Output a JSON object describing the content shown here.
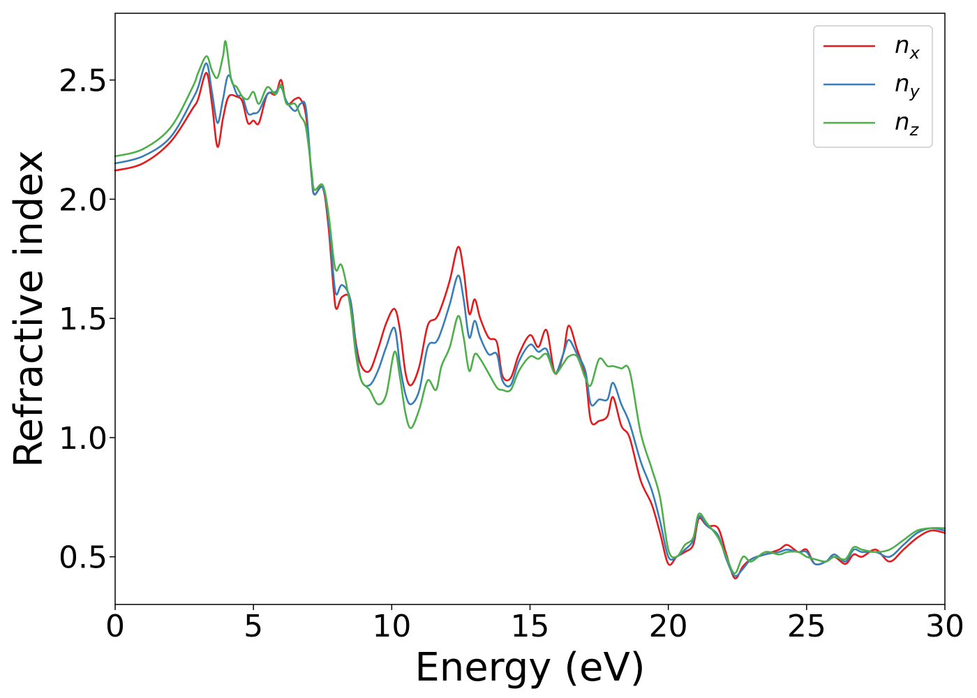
{
  "chart_data": {
    "type": "line",
    "title": "",
    "xlabel": "Energy (eV)",
    "ylabel": "Refractive index",
    "xlim": [
      0,
      30
    ],
    "ylim": [
      0.3,
      2.78
    ],
    "xticks": [
      0,
      5,
      10,
      15,
      20,
      25,
      30
    ],
    "xtick_labels": [
      "0",
      "5",
      "10",
      "15",
      "20",
      "25",
      "30"
    ],
    "yticks": [
      0.5,
      1.0,
      1.5,
      2.0,
      2.5
    ],
    "ytick_labels": [
      "0.5",
      "1.0",
      "1.5",
      "2.0",
      "2.5"
    ],
    "grid": false,
    "legend_position": "top-right",
    "series": [
      {
        "name": "n_x",
        "legend_base": "n",
        "legend_sub": "x",
        "color": "#e41a1c",
        "points": [
          [
            0,
            2.12
          ],
          [
            1,
            2.15
          ],
          [
            2,
            2.24
          ],
          [
            2.8,
            2.38
          ],
          [
            3.0,
            2.42
          ],
          [
            3.3,
            2.53
          ],
          [
            3.5,
            2.4
          ],
          [
            3.7,
            2.22
          ],
          [
            3.9,
            2.34
          ],
          [
            4.1,
            2.43
          ],
          [
            4.4,
            2.43
          ],
          [
            4.6,
            2.41
          ],
          [
            4.8,
            2.32
          ],
          [
            5.0,
            2.33
          ],
          [
            5.2,
            2.32
          ],
          [
            5.5,
            2.44
          ],
          [
            5.8,
            2.44
          ],
          [
            6.0,
            2.5
          ],
          [
            6.2,
            2.4
          ],
          [
            6.5,
            2.42
          ],
          [
            6.7,
            2.42
          ],
          [
            6.9,
            2.35
          ],
          [
            7.1,
            2.1
          ],
          [
            7.2,
            2.02
          ],
          [
            7.5,
            2.05
          ],
          [
            7.7,
            1.9
          ],
          [
            7.9,
            1.62
          ],
          [
            8.0,
            1.54
          ],
          [
            8.2,
            1.59
          ],
          [
            8.5,
            1.58
          ],
          [
            8.7,
            1.4
          ],
          [
            8.9,
            1.3
          ],
          [
            9.2,
            1.28
          ],
          [
            9.5,
            1.37
          ],
          [
            9.8,
            1.48
          ],
          [
            10.1,
            1.54
          ],
          [
            10.3,
            1.45
          ],
          [
            10.5,
            1.27
          ],
          [
            10.7,
            1.22
          ],
          [
            11.0,
            1.3
          ],
          [
            11.3,
            1.47
          ],
          [
            11.6,
            1.5
          ],
          [
            11.8,
            1.55
          ],
          [
            12.1,
            1.66
          ],
          [
            12.4,
            1.8
          ],
          [
            12.6,
            1.7
          ],
          [
            12.8,
            1.52
          ],
          [
            13.0,
            1.58
          ],
          [
            13.2,
            1.5
          ],
          [
            13.5,
            1.42
          ],
          [
            13.8,
            1.4
          ],
          [
            14.0,
            1.26
          ],
          [
            14.3,
            1.25
          ],
          [
            14.6,
            1.35
          ],
          [
            15.0,
            1.43
          ],
          [
            15.3,
            1.38
          ],
          [
            15.6,
            1.45
          ],
          [
            15.9,
            1.27
          ],
          [
            16.2,
            1.35
          ],
          [
            16.4,
            1.47
          ],
          [
            16.7,
            1.37
          ],
          [
            17.0,
            1.26
          ],
          [
            17.2,
            1.07
          ],
          [
            17.5,
            1.07
          ],
          [
            17.8,
            1.09
          ],
          [
            18.0,
            1.17
          ],
          [
            18.3,
            1.05
          ],
          [
            18.6,
            1.0
          ],
          [
            19.0,
            0.82
          ],
          [
            19.4,
            0.72
          ],
          [
            19.7,
            0.6
          ],
          [
            20.0,
            0.47
          ],
          [
            20.3,
            0.5
          ],
          [
            20.6,
            0.52
          ],
          [
            20.9,
            0.55
          ],
          [
            21.1,
            0.66
          ],
          [
            21.4,
            0.63
          ],
          [
            21.8,
            0.62
          ],
          [
            22.1,
            0.51
          ],
          [
            22.4,
            0.41
          ],
          [
            22.7,
            0.46
          ],
          [
            23.0,
            0.49
          ],
          [
            23.5,
            0.51
          ],
          [
            24.0,
            0.53
          ],
          [
            24.3,
            0.55
          ],
          [
            24.7,
            0.52
          ],
          [
            25.0,
            0.53
          ],
          [
            25.3,
            0.47
          ],
          [
            25.7,
            0.48
          ],
          [
            26.0,
            0.5
          ],
          [
            26.4,
            0.47
          ],
          [
            26.7,
            0.51
          ],
          [
            27.0,
            0.5
          ],
          [
            27.5,
            0.53
          ],
          [
            28.0,
            0.48
          ],
          [
            28.5,
            0.53
          ],
          [
            29.0,
            0.58
          ],
          [
            29.5,
            0.61
          ],
          [
            30.0,
            0.6
          ]
        ]
      },
      {
        "name": "n_y",
        "legend_base": "n",
        "legend_sub": "y",
        "color": "#377eb8",
        "points": [
          [
            0,
            2.15
          ],
          [
            1,
            2.18
          ],
          [
            2,
            2.26
          ],
          [
            2.8,
            2.42
          ],
          [
            3.0,
            2.47
          ],
          [
            3.3,
            2.57
          ],
          [
            3.5,
            2.45
          ],
          [
            3.7,
            2.32
          ],
          [
            3.9,
            2.42
          ],
          [
            4.1,
            2.52
          ],
          [
            4.4,
            2.44
          ],
          [
            4.6,
            2.43
          ],
          [
            4.8,
            2.36
          ],
          [
            5.0,
            2.36
          ],
          [
            5.2,
            2.37
          ],
          [
            5.5,
            2.44
          ],
          [
            5.8,
            2.45
          ],
          [
            6.0,
            2.47
          ],
          [
            6.2,
            2.41
          ],
          [
            6.5,
            2.37
          ],
          [
            6.7,
            2.4
          ],
          [
            6.9,
            2.38
          ],
          [
            7.1,
            2.1
          ],
          [
            7.2,
            2.02
          ],
          [
            7.5,
            2.05
          ],
          [
            7.7,
            1.93
          ],
          [
            7.9,
            1.67
          ],
          [
            8.0,
            1.6
          ],
          [
            8.2,
            1.64
          ],
          [
            8.5,
            1.58
          ],
          [
            8.7,
            1.38
          ],
          [
            8.9,
            1.24
          ],
          [
            9.2,
            1.22
          ],
          [
            9.5,
            1.28
          ],
          [
            9.8,
            1.38
          ],
          [
            10.1,
            1.46
          ],
          [
            10.3,
            1.3
          ],
          [
            10.5,
            1.18
          ],
          [
            10.7,
            1.14
          ],
          [
            11.0,
            1.2
          ],
          [
            11.3,
            1.38
          ],
          [
            11.6,
            1.4
          ],
          [
            11.8,
            1.45
          ],
          [
            12.1,
            1.56
          ],
          [
            12.4,
            1.68
          ],
          [
            12.6,
            1.58
          ],
          [
            12.8,
            1.42
          ],
          [
            13.0,
            1.49
          ],
          [
            13.2,
            1.42
          ],
          [
            13.5,
            1.35
          ],
          [
            13.8,
            1.35
          ],
          [
            14.0,
            1.24
          ],
          [
            14.3,
            1.22
          ],
          [
            14.6,
            1.32
          ],
          [
            15.0,
            1.39
          ],
          [
            15.3,
            1.36
          ],
          [
            15.6,
            1.37
          ],
          [
            15.9,
            1.27
          ],
          [
            16.2,
            1.35
          ],
          [
            16.4,
            1.41
          ],
          [
            16.7,
            1.35
          ],
          [
            17.0,
            1.28
          ],
          [
            17.2,
            1.14
          ],
          [
            17.5,
            1.16
          ],
          [
            17.8,
            1.16
          ],
          [
            18.0,
            1.23
          ],
          [
            18.3,
            1.14
          ],
          [
            18.6,
            1.06
          ],
          [
            19.0,
            0.9
          ],
          [
            19.4,
            0.78
          ],
          [
            19.7,
            0.65
          ],
          [
            20.0,
            0.5
          ],
          [
            20.3,
            0.5
          ],
          [
            20.6,
            0.53
          ],
          [
            20.9,
            0.57
          ],
          [
            21.1,
            0.67
          ],
          [
            21.4,
            0.63
          ],
          [
            21.8,
            0.59
          ],
          [
            22.1,
            0.49
          ],
          [
            22.4,
            0.42
          ],
          [
            22.7,
            0.45
          ],
          [
            23.0,
            0.49
          ],
          [
            23.5,
            0.51
          ],
          [
            24.0,
            0.52
          ],
          [
            24.3,
            0.53
          ],
          [
            24.7,
            0.52
          ],
          [
            25.0,
            0.52
          ],
          [
            25.3,
            0.47
          ],
          [
            25.7,
            0.48
          ],
          [
            26.0,
            0.51
          ],
          [
            26.4,
            0.48
          ],
          [
            26.7,
            0.53
          ],
          [
            27.0,
            0.52
          ],
          [
            27.5,
            0.52
          ],
          [
            28.0,
            0.5
          ],
          [
            28.5,
            0.55
          ],
          [
            29.0,
            0.6
          ],
          [
            29.5,
            0.62
          ],
          [
            30.0,
            0.61
          ]
        ]
      },
      {
        "name": "n_z",
        "legend_base": "n",
        "legend_sub": "z",
        "color": "#4daf4a",
        "points": [
          [
            0,
            2.18
          ],
          [
            1,
            2.21
          ],
          [
            2,
            2.3
          ],
          [
            2.8,
            2.47
          ],
          [
            3.0,
            2.53
          ],
          [
            3.3,
            2.6
          ],
          [
            3.5,
            2.54
          ],
          [
            3.7,
            2.51
          ],
          [
            3.9,
            2.6
          ],
          [
            4.0,
            2.66
          ],
          [
            4.2,
            2.5
          ],
          [
            4.4,
            2.47
          ],
          [
            4.6,
            2.43
          ],
          [
            4.8,
            2.42
          ],
          [
            5.0,
            2.45
          ],
          [
            5.2,
            2.4
          ],
          [
            5.5,
            2.47
          ],
          [
            5.8,
            2.44
          ],
          [
            6.0,
            2.48
          ],
          [
            6.2,
            2.4
          ],
          [
            6.5,
            2.4
          ],
          [
            6.7,
            2.35
          ],
          [
            6.9,
            2.3
          ],
          [
            7.1,
            2.12
          ],
          [
            7.2,
            2.04
          ],
          [
            7.5,
            2.06
          ],
          [
            7.7,
            1.95
          ],
          [
            7.9,
            1.75
          ],
          [
            8.0,
            1.7
          ],
          [
            8.2,
            1.72
          ],
          [
            8.5,
            1.55
          ],
          [
            8.7,
            1.35
          ],
          [
            8.9,
            1.24
          ],
          [
            9.2,
            1.2
          ],
          [
            9.5,
            1.14
          ],
          [
            9.8,
            1.18
          ],
          [
            10.1,
            1.36
          ],
          [
            10.3,
            1.25
          ],
          [
            10.5,
            1.1
          ],
          [
            10.7,
            1.04
          ],
          [
            11.0,
            1.12
          ],
          [
            11.3,
            1.24
          ],
          [
            11.6,
            1.2
          ],
          [
            11.8,
            1.3
          ],
          [
            12.1,
            1.38
          ],
          [
            12.4,
            1.51
          ],
          [
            12.6,
            1.42
          ],
          [
            12.8,
            1.28
          ],
          [
            13.0,
            1.35
          ],
          [
            13.2,
            1.33
          ],
          [
            13.5,
            1.27
          ],
          [
            13.8,
            1.21
          ],
          [
            14.0,
            1.2
          ],
          [
            14.3,
            1.2
          ],
          [
            14.6,
            1.28
          ],
          [
            15.0,
            1.34
          ],
          [
            15.3,
            1.33
          ],
          [
            15.6,
            1.35
          ],
          [
            15.9,
            1.27
          ],
          [
            16.2,
            1.31
          ],
          [
            16.4,
            1.34
          ],
          [
            16.7,
            1.34
          ],
          [
            17.0,
            1.25
          ],
          [
            17.2,
            1.22
          ],
          [
            17.5,
            1.33
          ],
          [
            17.8,
            1.3
          ],
          [
            18.0,
            1.3
          ],
          [
            18.3,
            1.29
          ],
          [
            18.6,
            1.28
          ],
          [
            19.0,
            1.02
          ],
          [
            19.4,
            0.87
          ],
          [
            19.7,
            0.75
          ],
          [
            20.0,
            0.53
          ],
          [
            20.3,
            0.5
          ],
          [
            20.6,
            0.55
          ],
          [
            20.9,
            0.58
          ],
          [
            21.1,
            0.68
          ],
          [
            21.4,
            0.64
          ],
          [
            21.8,
            0.58
          ],
          [
            22.1,
            0.5
          ],
          [
            22.4,
            0.43
          ],
          [
            22.7,
            0.5
          ],
          [
            23.0,
            0.48
          ],
          [
            23.5,
            0.52
          ],
          [
            24.0,
            0.51
          ],
          [
            24.3,
            0.52
          ],
          [
            24.7,
            0.52
          ],
          [
            25.0,
            0.5
          ],
          [
            25.3,
            0.49
          ],
          [
            25.7,
            0.48
          ],
          [
            26.0,
            0.5
          ],
          [
            26.4,
            0.49
          ],
          [
            26.7,
            0.54
          ],
          [
            27.0,
            0.53
          ],
          [
            27.5,
            0.52
          ],
          [
            28.0,
            0.53
          ],
          [
            28.5,
            0.57
          ],
          [
            29.0,
            0.61
          ],
          [
            29.5,
            0.62
          ],
          [
            30.0,
            0.62
          ]
        ]
      }
    ]
  }
}
